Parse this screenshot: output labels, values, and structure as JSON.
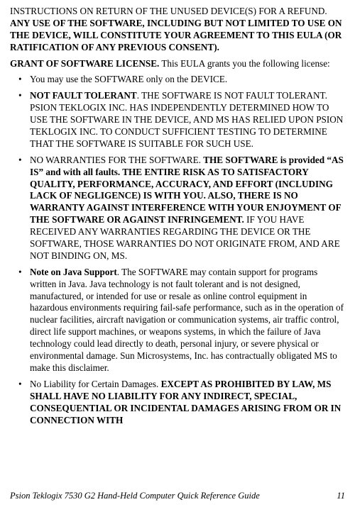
{
  "intro": {
    "pre": "INSTRUCTIONS ON RETURN OF THE UNUSED DEVICE(S) FOR A REFUND. ",
    "bold": "ANY USE OF THE SOFTWARE, INCLUDING BUT NOT LIMITED TO USE ON THE DEVICE, WILL CONSTITUTE YOUR AGREEMENT TO THIS EULA (OR RATIFICATION OF ANY PREVIOUS CONSENT)."
  },
  "grant": {
    "title": "GRANT OF SOFTWARE LICENSE.",
    "rest": " This EULA grants you the following license:"
  },
  "items": {
    "b0": "You may use the SOFTWARE only on the DEVICE.",
    "b1_lead": "NOT FAULT TOLERANT",
    "b1_rest": ". THE SOFTWARE IS NOT FAULT TOLERANT. PSION TEKLOGIX INC. HAS INDEPENDENTLY DETERMINED HOW TO USE THE SOFTWARE IN THE DEVICE, AND MS HAS RELIED UPON PSION TEKLOGIX INC. TO CONDUCT SUFFICIENT TESTING TO DETERMINE THAT THE SOFTWARE IS SUITABLE FOR SUCH USE.",
    "b2_pre": "NO WARRANTIES FOR THE SOFTWARE. ",
    "b2_bold": "THE SOFTWARE is provided “AS IS” and with all faults. THE ENTIRE RISK AS TO SATISFACTORY QUALITY, PERFORMANCE, ACCURACY, AND EFFORT (INCLUDING LACK OF NEGLIGENCE) IS WITH YOU. ALSO, THERE IS NO WARRANTY AGAINST INTERFERENCE WITH YOUR ENJOYMENT OF THE SOFTWARE OR AGAINST INFRINGEMENT.",
    "b2_post": " IF YOU HAVE RECEIVED ANY WARRANTIES REGARDING THE DEVICE OR THE SOFTWARE, THOSE WARRANTIES DO NOT ORIGINATE FROM, AND ARE NOT BINDING ON, MS.",
    "b3_lead": "Note on Java Support",
    "b3_rest": ". The SOFTWARE may contain support for programs written in Java. Java technology is not fault tolerant and is not designed, manufactured, or intended for use or resale as online control equipment in hazardous environments requiring fail-safe performance, such as in the operation of nuclear facilities, aircraft navigation or communication systems, air traffic control, direct life support machines, or weapons systems, in which the failure of Java technology could lead directly to death, personal injury, or severe physical or environmental damage. Sun Microsystems, Inc. has contractually obligated MS to make this disclaimer.",
    "b4_pre": "No Liability for Certain Damages. ",
    "b4_bold": "EXCEPT AS PROHIBITED BY LAW, MS SHALL HAVE NO LIABILITY FOR ANY INDIRECT, SPECIAL, CONSEQUENTIAL OR INCIDENTAL DAMAGES ARISING FROM OR IN CONNECTION WITH"
  },
  "footer": {
    "title": "Psion Teklogix 7530 G2 Hand-Held Computer Quick Reference Guide",
    "page": "11"
  }
}
